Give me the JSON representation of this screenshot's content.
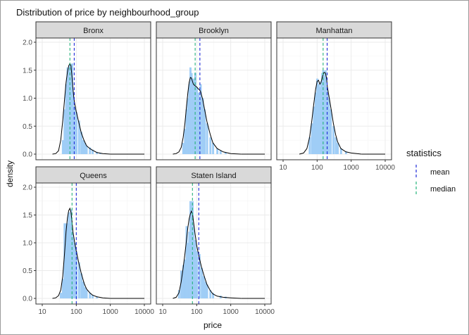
{
  "chart_data": {
    "type": "histogram-density",
    "title": "Distribution of price by neighbourhood_group",
    "xlabel": "price",
    "ylabel": "density",
    "x_scale": "log10",
    "xlim": [
      10,
      10000
    ],
    "ylim": [
      0,
      2.0
    ],
    "x_ticks": [
      10,
      100,
      1000,
      10000
    ],
    "x_tick_labels": [
      "10",
      "100",
      "1000",
      "10000"
    ],
    "y_ticks": [
      0,
      0.5,
      1.0,
      1.5,
      2.0
    ],
    "y_tick_labels": [
      "0.0",
      "0.5",
      "1.0",
      "1.5",
      "2.0"
    ],
    "grid": true,
    "colors": {
      "histogram_fill": "#9fcdf6",
      "density_line": "#000000",
      "mean_line": "#1f2bd8",
      "median_line": "#26b37a",
      "strip_fill": "#d9d9d9",
      "panel_border": "#333333",
      "grid": "#ebebeb"
    },
    "legend": {
      "title": "statistics",
      "position": "right",
      "items": [
        {
          "label": "mean",
          "color": "#1f2bd8",
          "style": "dashed"
        },
        {
          "label": "median",
          "color": "#26b37a",
          "style": "dashed"
        }
      ]
    },
    "panels": [
      {
        "name": "Bronx",
        "mean": 87,
        "median": 65,
        "density_points": [
          [
            20,
            0
          ],
          [
            25,
            0.01
          ],
          [
            30,
            0.06
          ],
          [
            35,
            0.25
          ],
          [
            40,
            0.6
          ],
          [
            45,
            0.97
          ],
          [
            50,
            1.28
          ],
          [
            55,
            1.47
          ],
          [
            60,
            1.58
          ],
          [
            65,
            1.62
          ],
          [
            70,
            1.58
          ],
          [
            75,
            1.37
          ],
          [
            80,
            1.17
          ],
          [
            85,
            1.0
          ],
          [
            90,
            0.9
          ],
          [
            100,
            0.76
          ],
          [
            120,
            0.55
          ],
          [
            140,
            0.38
          ],
          [
            170,
            0.24
          ],
          [
            200,
            0.15
          ],
          [
            250,
            0.1
          ],
          [
            300,
            0.07
          ],
          [
            400,
            0.03
          ],
          [
            600,
            0.01
          ],
          [
            1000,
            0
          ]
        ],
        "hist_bars": [
          [
            40,
            0.25
          ],
          [
            45,
            0.8
          ],
          [
            50,
            1.25
          ],
          [
            55,
            1.55
          ],
          [
            60,
            1.55
          ],
          [
            65,
            1.6
          ],
          [
            70,
            1.3
          ],
          [
            75,
            1.62
          ],
          [
            80,
            1.05
          ],
          [
            90,
            0.85
          ],
          [
            100,
            0.75
          ],
          [
            120,
            0.6
          ],
          [
            140,
            0.4
          ],
          [
            160,
            0.25
          ],
          [
            180,
            0.2
          ],
          [
            200,
            0.15
          ],
          [
            250,
            0.12
          ],
          [
            300,
            0.08
          ],
          [
            400,
            0.04
          ],
          [
            500,
            0.02
          ]
        ]
      },
      {
        "name": "Brooklyn",
        "mean": 124,
        "median": 90,
        "density_points": [
          [
            20,
            0
          ],
          [
            25,
            0.01
          ],
          [
            30,
            0.04
          ],
          [
            35,
            0.12
          ],
          [
            40,
            0.3
          ],
          [
            45,
            0.55
          ],
          [
            50,
            0.85
          ],
          [
            55,
            1.1
          ],
          [
            60,
            1.28
          ],
          [
            65,
            1.37
          ],
          [
            70,
            1.36
          ],
          [
            75,
            1.3
          ],
          [
            80,
            1.25
          ],
          [
            90,
            1.22
          ],
          [
            100,
            1.2
          ],
          [
            110,
            1.17
          ],
          [
            120,
            1.15
          ],
          [
            130,
            1.12
          ],
          [
            150,
            0.98
          ],
          [
            170,
            0.8
          ],
          [
            200,
            0.58
          ],
          [
            250,
            0.35
          ],
          [
            300,
            0.2
          ],
          [
            400,
            0.1
          ],
          [
            600,
            0.04
          ],
          [
            1000,
            0.01
          ],
          [
            2000,
            0
          ]
        ],
        "hist_bars": [
          [
            40,
            0.2
          ],
          [
            45,
            0.45
          ],
          [
            50,
            0.8
          ],
          [
            55,
            1.0
          ],
          [
            60,
            1.25
          ],
          [
            65,
            1.55
          ],
          [
            70,
            1.45
          ],
          [
            75,
            1.2
          ],
          [
            80,
            1.35
          ],
          [
            90,
            1.45
          ],
          [
            100,
            1.2
          ],
          [
            110,
            1.1
          ],
          [
            120,
            1.0
          ],
          [
            130,
            1.25
          ],
          [
            150,
            1.0
          ],
          [
            170,
            0.8
          ],
          [
            200,
            0.55
          ],
          [
            250,
            0.3
          ],
          [
            300,
            0.2
          ],
          [
            400,
            0.1
          ],
          [
            500,
            0.06
          ],
          [
            700,
            0.03
          ]
        ]
      },
      {
        "name": "Manhattan",
        "mean": 197,
        "median": 150,
        "density_points": [
          [
            30,
            0
          ],
          [
            40,
            0.02
          ],
          [
            50,
            0.1
          ],
          [
            60,
            0.3
          ],
          [
            70,
            0.6
          ],
          [
            80,
            0.9
          ],
          [
            90,
            1.15
          ],
          [
            100,
            1.3
          ],
          [
            110,
            1.32
          ],
          [
            120,
            1.25
          ],
          [
            130,
            1.28
          ],
          [
            140,
            1.36
          ],
          [
            150,
            1.42
          ],
          [
            160,
            1.46
          ],
          [
            175,
            1.45
          ],
          [
            190,
            1.35
          ],
          [
            200,
            1.2
          ],
          [
            220,
            1.05
          ],
          [
            250,
            0.85
          ],
          [
            300,
            0.55
          ],
          [
            350,
            0.35
          ],
          [
            400,
            0.22
          ],
          [
            500,
            0.1
          ],
          [
            700,
            0.04
          ],
          [
            1000,
            0.02
          ],
          [
            2000,
            0
          ]
        ],
        "hist_bars": [
          [
            60,
            0.3
          ],
          [
            70,
            0.55
          ],
          [
            80,
            0.85
          ],
          [
            90,
            1.1
          ],
          [
            100,
            1.35
          ],
          [
            110,
            1.25
          ],
          [
            120,
            1.2
          ],
          [
            130,
            1.3
          ],
          [
            140,
            1.45
          ],
          [
            150,
            1.5
          ],
          [
            160,
            1.4
          ],
          [
            175,
            1.5
          ],
          [
            190,
            1.2
          ],
          [
            200,
            1.1
          ],
          [
            220,
            1.0
          ],
          [
            250,
            0.8
          ],
          [
            300,
            0.5
          ],
          [
            350,
            0.3
          ],
          [
            400,
            0.2
          ],
          [
            500,
            0.1
          ],
          [
            700,
            0.05
          ]
        ]
      },
      {
        "name": "Queens",
        "mean": 100,
        "median": 75,
        "density_points": [
          [
            20,
            0
          ],
          [
            25,
            0.01
          ],
          [
            30,
            0.05
          ],
          [
            35,
            0.15
          ],
          [
            40,
            0.4
          ],
          [
            45,
            0.8
          ],
          [
            50,
            1.2
          ],
          [
            55,
            1.45
          ],
          [
            60,
            1.58
          ],
          [
            65,
            1.62
          ],
          [
            70,
            1.55
          ],
          [
            75,
            1.38
          ],
          [
            80,
            1.2
          ],
          [
            90,
            1.0
          ],
          [
            100,
            0.85
          ],
          [
            120,
            0.62
          ],
          [
            140,
            0.45
          ],
          [
            170,
            0.27
          ],
          [
            200,
            0.17
          ],
          [
            250,
            0.1
          ],
          [
            300,
            0.06
          ],
          [
            400,
            0.03
          ],
          [
            600,
            0.01
          ],
          [
            1000,
            0
          ]
        ],
        "hist_bars": [
          [
            35,
            0.1
          ],
          [
            40,
            0.35
          ],
          [
            45,
            1.35
          ],
          [
            50,
            1.35
          ],
          [
            55,
            1.35
          ],
          [
            60,
            1.55
          ],
          [
            65,
            1.35
          ],
          [
            70,
            1.6
          ],
          [
            75,
            1.2
          ],
          [
            80,
            1.1
          ],
          [
            90,
            1.0
          ],
          [
            100,
            0.85
          ],
          [
            120,
            0.65
          ],
          [
            140,
            0.45
          ],
          [
            160,
            0.3
          ],
          [
            180,
            0.2
          ],
          [
            200,
            0.15
          ],
          [
            250,
            0.1
          ],
          [
            300,
            0.06
          ],
          [
            400,
            0.03
          ]
        ]
      },
      {
        "name": "Staten Island",
        "mean": 115,
        "median": 75,
        "density_points": [
          [
            20,
            0
          ],
          [
            25,
            0.02
          ],
          [
            30,
            0.1
          ],
          [
            35,
            0.3
          ],
          [
            40,
            0.55
          ],
          [
            45,
            0.8
          ],
          [
            50,
            1.05
          ],
          [
            55,
            1.28
          ],
          [
            60,
            1.43
          ],
          [
            65,
            1.52
          ],
          [
            70,
            1.57
          ],
          [
            75,
            1.52
          ],
          [
            80,
            1.4
          ],
          [
            90,
            1.15
          ],
          [
            100,
            0.95
          ],
          [
            120,
            0.72
          ],
          [
            140,
            0.55
          ],
          [
            170,
            0.38
          ],
          [
            200,
            0.25
          ],
          [
            250,
            0.14
          ],
          [
            300,
            0.08
          ],
          [
            400,
            0.04
          ],
          [
            600,
            0.02
          ],
          [
            1000,
            0.01
          ],
          [
            2000,
            0
          ]
        ],
        "hist_bars": [
          [
            30,
            0.15
          ],
          [
            35,
            0.5
          ],
          [
            40,
            0.6
          ],
          [
            45,
            0.7
          ],
          [
            50,
            1.3
          ],
          [
            55,
            1.0
          ],
          [
            60,
            1.2
          ],
          [
            65,
            1.75
          ],
          [
            70,
            1.5
          ],
          [
            75,
            1.75
          ],
          [
            80,
            1.3
          ],
          [
            90,
            1.05
          ],
          [
            100,
            0.85
          ],
          [
            120,
            0.8
          ],
          [
            140,
            0.55
          ],
          [
            160,
            0.4
          ],
          [
            180,
            0.3
          ],
          [
            200,
            0.25
          ],
          [
            250,
            0.15
          ],
          [
            300,
            0.1
          ],
          [
            500,
            0.05
          ],
          [
            700,
            0.03
          ]
        ]
      }
    ]
  }
}
